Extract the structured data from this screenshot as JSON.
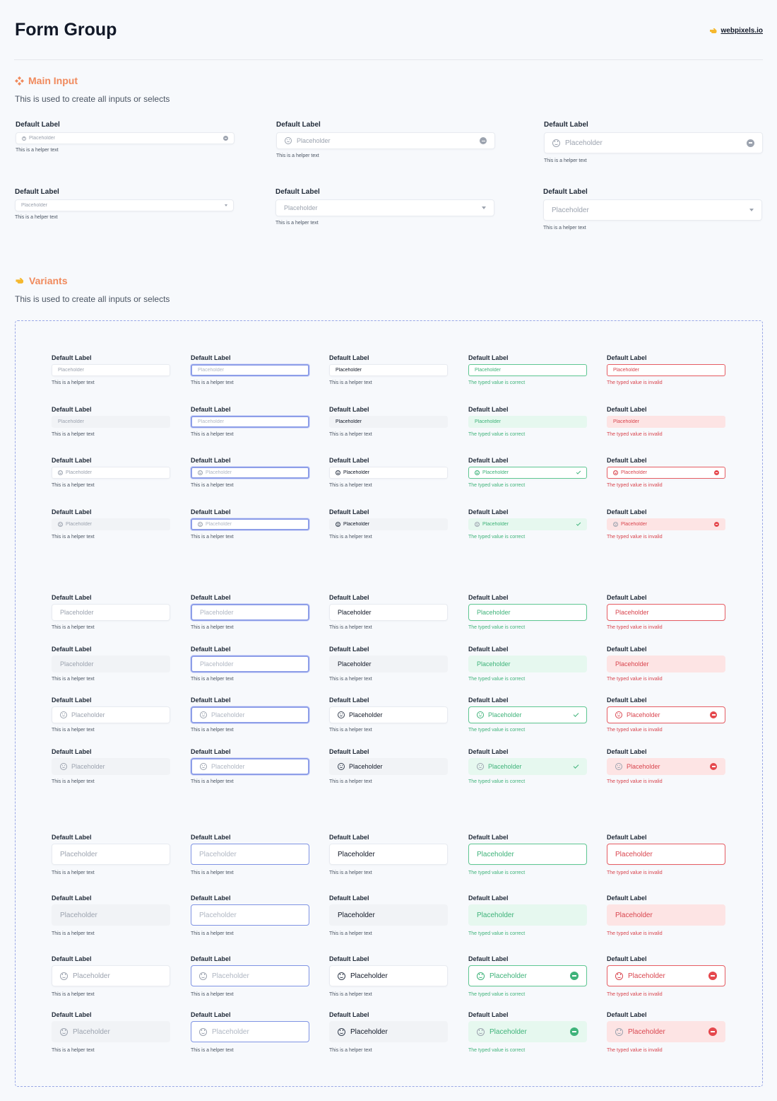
{
  "header": {
    "title": "Form Group",
    "brand_link": "webpixels.io"
  },
  "colors": {
    "accent": "#f08a5d",
    "focus": "#8d9ee8",
    "success": "#3fb37a",
    "error": "#e5484d"
  },
  "main_input": {
    "title": "Main Input",
    "description": "This is used to create all inputs or selects",
    "label": "Default Label",
    "placeholder": "Placeholder",
    "helper": "This is a helper text"
  },
  "variants": {
    "title": "Variants",
    "description": "This is used to create all inputs or selects",
    "label": "Default Label",
    "placeholder": "Placeholder",
    "helper": "This is a helper text",
    "success_text": "The typed value is correct",
    "error_text": "The typed value is invalid"
  }
}
